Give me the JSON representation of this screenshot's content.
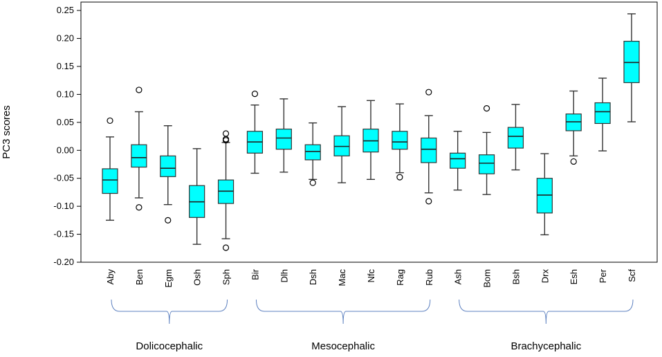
{
  "chart_data": {
    "type": "boxplot",
    "title": "",
    "xlabel": "",
    "ylabel": "PC3 scores",
    "ylim": [
      -0.2,
      0.265
    ],
    "yticks": [
      -0.2,
      -0.15,
      -0.1,
      -0.05,
      0.0,
      0.05,
      0.1,
      0.15,
      0.2,
      0.25
    ],
    "ytick_labels": [
      "-0.20",
      "-0.15",
      "-0.10",
      "-0.05",
      "0.00",
      "0.05",
      "0.10",
      "0.15",
      "0.20",
      "0.25"
    ],
    "box_color": "#00ffff",
    "categories": [
      "Aby",
      "Ben",
      "Egm",
      "Osh",
      "Sph",
      "Bir",
      "Dlh",
      "Dsh",
      "Mac",
      "Nfc",
      "Rag",
      "Rub",
      "Ash",
      "Bom",
      "Bsh",
      "Drx",
      "Esh",
      "Per",
      "Scf"
    ],
    "boxes": [
      {
        "name": "Aby",
        "whisker_low": -0.125,
        "q1": -0.077,
        "median": -0.053,
        "q3": -0.033,
        "whisker_high": 0.024,
        "outliers": [
          0.053
        ]
      },
      {
        "name": "Ben",
        "whisker_low": -0.085,
        "q1": -0.03,
        "median": -0.013,
        "q3": 0.01,
        "whisker_high": 0.069,
        "outliers": [
          0.108,
          -0.102
        ]
      },
      {
        "name": "Egm",
        "whisker_low": -0.097,
        "q1": -0.047,
        "median": -0.032,
        "q3": -0.01,
        "whisker_high": 0.044,
        "outliers": [
          -0.125
        ]
      },
      {
        "name": "Osh",
        "whisker_low": -0.168,
        "q1": -0.12,
        "median": -0.092,
        "q3": -0.063,
        "whisker_high": 0.003,
        "outliers": []
      },
      {
        "name": "Sph",
        "whisker_low": -0.158,
        "q1": -0.095,
        "median": -0.073,
        "q3": -0.053,
        "whisker_high": 0.014,
        "outliers": [
          0.03,
          0.02,
          0.018,
          -0.174
        ]
      },
      {
        "name": "Bir",
        "whisker_low": -0.041,
        "q1": -0.005,
        "median": 0.015,
        "q3": 0.034,
        "whisker_high": 0.081,
        "outliers": [
          0.101
        ]
      },
      {
        "name": "Dlh",
        "whisker_low": -0.039,
        "q1": 0.002,
        "median": 0.022,
        "q3": 0.038,
        "whisker_high": 0.092,
        "outliers": []
      },
      {
        "name": "Dsh",
        "whisker_low": -0.052,
        "q1": -0.017,
        "median": -0.002,
        "q3": 0.01,
        "whisker_high": 0.049,
        "outliers": [
          -0.058
        ]
      },
      {
        "name": "Mac",
        "whisker_low": -0.058,
        "q1": -0.01,
        "median": 0.007,
        "q3": 0.026,
        "whisker_high": 0.078,
        "outliers": []
      },
      {
        "name": "Nfc",
        "whisker_low": -0.052,
        "q1": -0.003,
        "median": 0.017,
        "q3": 0.038,
        "whisker_high": 0.089,
        "outliers": []
      },
      {
        "name": "Rag",
        "whisker_low": -0.04,
        "q1": 0.002,
        "median": 0.015,
        "q3": 0.034,
        "whisker_high": 0.083,
        "outliers": [
          -0.048
        ]
      },
      {
        "name": "Rub",
        "whisker_low": -0.076,
        "q1": -0.022,
        "median": 0.002,
        "q3": 0.022,
        "whisker_high": 0.062,
        "outliers": [
          0.104,
          -0.091
        ]
      },
      {
        "name": "Ash",
        "whisker_low": -0.071,
        "q1": -0.032,
        "median": -0.015,
        "q3": -0.005,
        "whisker_high": 0.034,
        "outliers": []
      },
      {
        "name": "Bom",
        "whisker_low": -0.079,
        "q1": -0.042,
        "median": -0.023,
        "q3": -0.008,
        "whisker_high": 0.032,
        "outliers": [
          0.075
        ]
      },
      {
        "name": "Bsh",
        "whisker_low": -0.035,
        "q1": 0.004,
        "median": 0.025,
        "q3": 0.041,
        "whisker_high": 0.082,
        "outliers": []
      },
      {
        "name": "Drx",
        "whisker_low": -0.151,
        "q1": -0.112,
        "median": -0.08,
        "q3": -0.05,
        "whisker_high": -0.006,
        "outliers": []
      },
      {
        "name": "Esh",
        "whisker_low": -0.01,
        "q1": 0.035,
        "median": 0.051,
        "q3": 0.065,
        "whisker_high": 0.106,
        "outliers": [
          -0.02
        ]
      },
      {
        "name": "Per",
        "whisker_low": -0.001,
        "q1": 0.048,
        "median": 0.069,
        "q3": 0.085,
        "whisker_high": 0.129,
        "outliers": []
      },
      {
        "name": "Scf",
        "whisker_low": 0.051,
        "q1": 0.121,
        "median": 0.157,
        "q3": 0.195,
        "whisker_high": 0.244,
        "outliers": []
      }
    ],
    "groups": [
      {
        "label": "Dolicocephalic",
        "from": "Aby",
        "to": "Sph"
      },
      {
        "label": "Mesocephalic",
        "from": "Bir",
        "to": "Rub"
      },
      {
        "label": "Brachycephalic",
        "from": "Ash",
        "to": "Scf"
      }
    ],
    "bracket_color": "#5b7fbf"
  }
}
